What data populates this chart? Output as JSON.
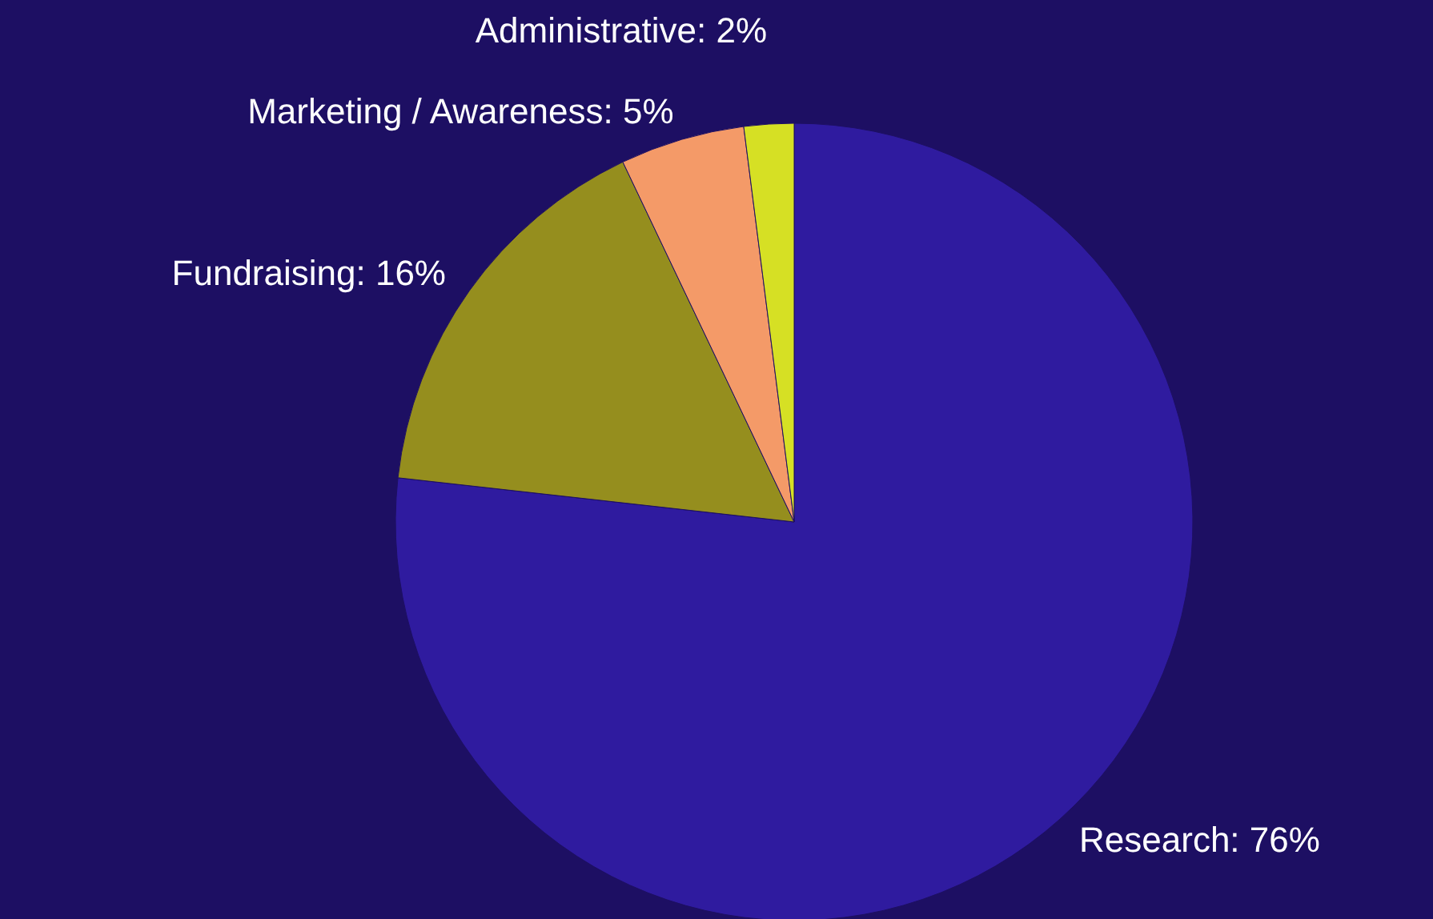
{
  "chart_data": {
    "type": "pie",
    "categories": [
      "Research: 76%",
      "Fundraising: 16%",
      "Marketing / Awareness: 5%",
      "Administrative: 2%"
    ],
    "values": [
      76,
      16,
      5,
      2
    ],
    "colors": [
      "#2f1b9f",
      "#958e1e",
      "#f49a68",
      "#d6e024"
    ]
  }
}
